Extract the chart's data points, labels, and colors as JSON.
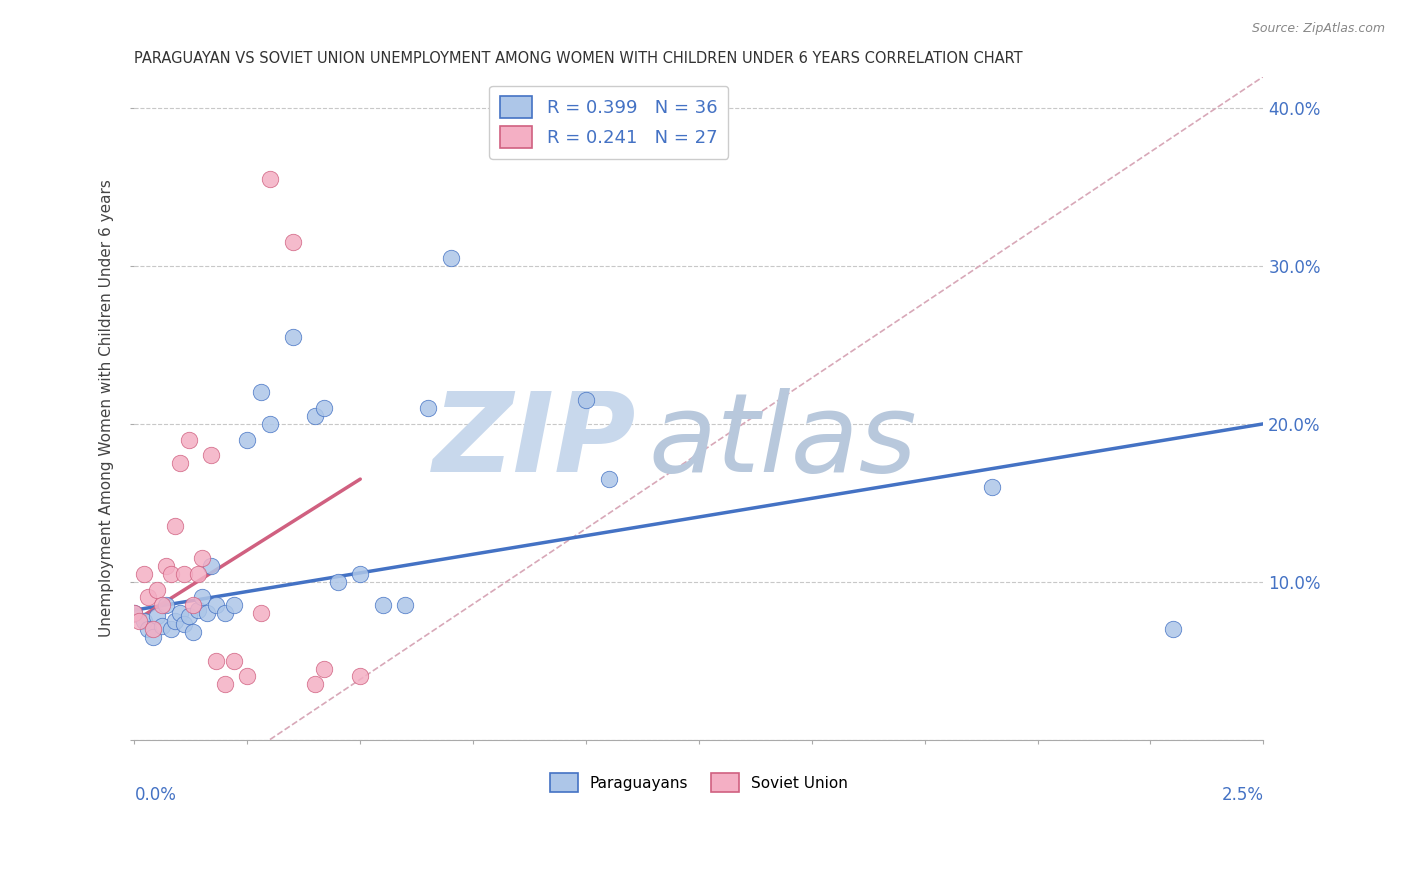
{
  "title": "PARAGUAYAN VS SOVIET UNION UNEMPLOYMENT AMONG WOMEN WITH CHILDREN UNDER 6 YEARS CORRELATION CHART",
  "source": "Source: ZipAtlas.com",
  "ylabel": "Unemployment Among Women with Children Under 6 years",
  "xlim": [
    0.0,
    2.5
  ],
  "ylim": [
    0.0,
    42.0
  ],
  "yticks": [
    0,
    10,
    20,
    30,
    40
  ],
  "color_paraguayan_fill": "#adc6e8",
  "color_paraguayan_edge": "#4472C4",
  "color_soviet_fill": "#f4afc4",
  "color_soviet_edge": "#d06080",
  "color_line_paraguayan": "#4472C4",
  "color_line_soviet": "#d06080",
  "color_diag": "#d8a8b8",
  "color_grid": "#c8c8c8",
  "watermark_zip": "#c8d8e8",
  "watermark_atlas": "#b8c8d8",
  "paraguayan_x": [
    0.0,
    0.02,
    0.03,
    0.04,
    0.05,
    0.06,
    0.07,
    0.08,
    0.09,
    0.1,
    0.11,
    0.12,
    0.13,
    0.14,
    0.15,
    0.16,
    0.17,
    0.18,
    0.2,
    0.22,
    0.25,
    0.28,
    0.3,
    0.35,
    0.4,
    0.42,
    0.45,
    0.5,
    0.55,
    0.6,
    0.65,
    0.7,
    1.0,
    1.05,
    1.9,
    2.3
  ],
  "paraguayan_y": [
    8.0,
    7.5,
    7.0,
    6.5,
    7.8,
    7.2,
    8.5,
    7.0,
    7.5,
    8.0,
    7.3,
    7.8,
    6.8,
    8.2,
    9.0,
    8.0,
    11.0,
    8.5,
    8.0,
    8.5,
    19.0,
    22.0,
    20.0,
    25.5,
    20.5,
    21.0,
    10.0,
    10.5,
    8.5,
    8.5,
    21.0,
    30.5,
    21.5,
    16.5,
    16.0,
    7.0
  ],
  "soviet_x": [
    0.0,
    0.01,
    0.02,
    0.03,
    0.04,
    0.05,
    0.06,
    0.07,
    0.08,
    0.09,
    0.1,
    0.11,
    0.12,
    0.13,
    0.14,
    0.15,
    0.17,
    0.18,
    0.2,
    0.22,
    0.25,
    0.28,
    0.3,
    0.35,
    0.4,
    0.42,
    0.5
  ],
  "soviet_y": [
    8.0,
    7.5,
    10.5,
    9.0,
    7.0,
    9.5,
    8.5,
    11.0,
    10.5,
    13.5,
    17.5,
    10.5,
    19.0,
    8.5,
    10.5,
    11.5,
    18.0,
    5.0,
    3.5,
    5.0,
    4.0,
    8.0,
    35.5,
    31.5,
    3.5,
    4.5,
    4.0
  ],
  "trend_blue_x0": 0.0,
  "trend_blue_y0": 8.2,
  "trend_blue_x1": 2.5,
  "trend_blue_y1": 20.0,
  "trend_pink_x0": 0.0,
  "trend_pink_y0": 7.5,
  "trend_pink_x1": 0.5,
  "trend_pink_y1": 16.5,
  "diag_x0": 0.3,
  "diag_y0": 0.0,
  "diag_x1": 2.5,
  "diag_y1": 42.0
}
